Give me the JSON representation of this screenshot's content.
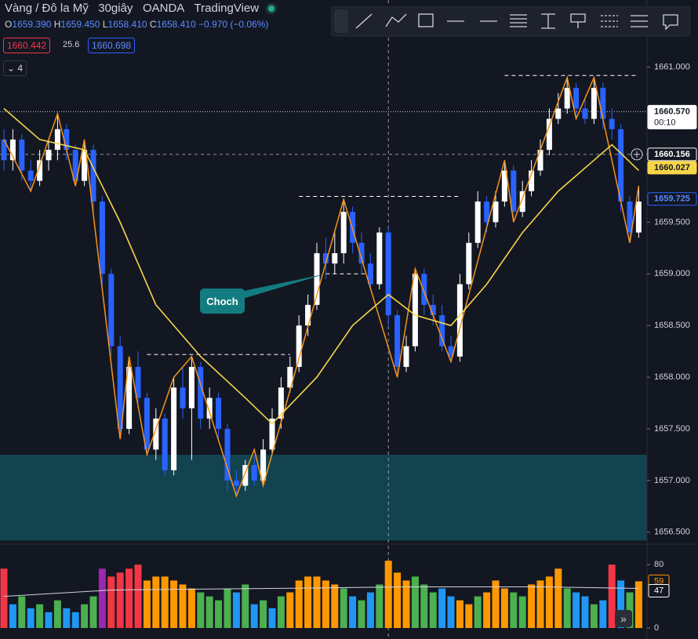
{
  "header": {
    "symbol": "Vàng / Đô la Mỹ",
    "interval": "30giây",
    "broker": "OANDA",
    "platform": "TradingView",
    "ohlc": {
      "o_label": "O",
      "o": "1659.390",
      "h_label": "H",
      "h": "1659.450",
      "l_label": "L",
      "l": "1658.410",
      "c_label": "C",
      "c": "1658.410",
      "change": "−0.970 (−0.06%)"
    },
    "bid": "1660.442",
    "spread": "25.6",
    "ask": "1660.698",
    "indicators": "4"
  },
  "chart_data": {
    "type": "candlestick",
    "ylim": [
      1656.4,
      1661.65
    ],
    "yticks": [
      {
        "value": 1661.0,
        "label": "1661.000"
      },
      {
        "value": 1659.5,
        "label": "1659.500"
      },
      {
        "value": 1659.0,
        "label": "1659.000"
      },
      {
        "value": 1658.5,
        "label": "1658.500"
      },
      {
        "value": 1658.0,
        "label": "1658.000"
      },
      {
        "value": 1657.5,
        "label": "1657.500"
      },
      {
        "value": 1657.0,
        "label": "1657.000"
      },
      {
        "value": 1656.5,
        "label": "1656.500"
      }
    ],
    "up_color": "#ffffff",
    "down_color": "#2962ff",
    "candles": {
      "open": [
        1660.3,
        1660.1,
        1660.3,
        1660.0,
        1659.9,
        1660.1,
        1660.2,
        1660.4,
        1660.2,
        1659.9,
        1660.2,
        1659.7,
        1659.0,
        1658.3,
        1657.5,
        1658.1,
        1657.8,
        1657.3,
        1657.6,
        1657.1,
        1657.9,
        1657.7,
        1658.1,
        1657.6,
        1657.8,
        1657.5,
        1657.0,
        1656.95,
        1657.15,
        1657.0,
        1657.3,
        1657.6,
        1657.9,
        1658.1,
        1658.5,
        1658.7,
        1659.2,
        1659.1,
        1659.2,
        1659.6,
        1659.3,
        1659.1,
        1658.9,
        1659.4,
        1658.6,
        1658.1,
        1658.3,
        1659.0,
        1658.7,
        1658.6,
        1658.3,
        1658.2,
        1658.9,
        1659.3,
        1659.7,
        1659.5,
        1659.7,
        1660.0,
        1659.6,
        1659.8,
        1660.0,
        1660.2,
        1660.5,
        1660.6,
        1660.8,
        1660.6,
        1660.5,
        1660.8,
        1660.5,
        1660.4,
        1659.7,
        1659.4
      ],
      "high": [
        1660.4,
        1660.4,
        1660.35,
        1660.1,
        1660.2,
        1660.3,
        1660.55,
        1660.45,
        1660.25,
        1660.3,
        1660.25,
        1659.75,
        1659.05,
        1658.4,
        1658.2,
        1658.25,
        1657.85,
        1657.7,
        1657.65,
        1658.0,
        1658.1,
        1658.2,
        1658.15,
        1657.9,
        1657.85,
        1657.55,
        1657.1,
        1657.2,
        1657.25,
        1657.4,
        1657.7,
        1658.0,
        1658.2,
        1658.6,
        1658.8,
        1659.3,
        1659.35,
        1659.4,
        1659.72,
        1659.65,
        1659.4,
        1659.2,
        1659.45,
        1659.45,
        1658.65,
        1658.4,
        1659.05,
        1659.05,
        1658.8,
        1658.7,
        1658.4,
        1659.0,
        1659.4,
        1659.8,
        1659.75,
        1659.8,
        1660.1,
        1660.05,
        1659.9,
        1660.1,
        1660.3,
        1660.6,
        1660.75,
        1660.9,
        1660.85,
        1660.7,
        1660.9,
        1660.85,
        1660.6,
        1660.45,
        1659.75,
        1659.85
      ],
      "low": [
        1660.0,
        1660.0,
        1659.9,
        1659.8,
        1659.85,
        1660.0,
        1660.1,
        1660.1,
        1659.85,
        1659.85,
        1659.6,
        1658.9,
        1658.2,
        1657.4,
        1657.45,
        1657.7,
        1657.25,
        1657.2,
        1657.05,
        1657.05,
        1657.6,
        1657.2,
        1657.5,
        1657.5,
        1657.4,
        1656.9,
        1656.85,
        1656.9,
        1656.95,
        1656.95,
        1657.25,
        1657.5,
        1657.85,
        1658.05,
        1658.4,
        1658.65,
        1658.95,
        1659.0,
        1659.1,
        1659.2,
        1659.0,
        1658.85,
        1658.85,
        1658.5,
        1658.0,
        1658.05,
        1658.25,
        1658.6,
        1658.5,
        1658.25,
        1658.15,
        1658.15,
        1658.85,
        1659.25,
        1659.4,
        1659.45,
        1659.65,
        1659.5,
        1659.55,
        1659.75,
        1659.95,
        1660.15,
        1660.45,
        1660.55,
        1660.5,
        1660.45,
        1660.45,
        1660.4,
        1660.3,
        1659.6,
        1659.3,
        1659.35
      ],
      "close": [
        1660.1,
        1660.3,
        1660.0,
        1659.9,
        1660.1,
        1660.2,
        1660.4,
        1660.2,
        1659.9,
        1660.2,
        1659.7,
        1659.0,
        1658.3,
        1657.5,
        1658.1,
        1657.8,
        1657.3,
        1657.6,
        1657.1,
        1657.9,
        1657.7,
        1658.1,
        1657.6,
        1657.8,
        1657.5,
        1657.0,
        1656.95,
        1657.15,
        1657.0,
        1657.3,
        1657.6,
        1657.9,
        1658.1,
        1658.5,
        1658.7,
        1659.2,
        1659.1,
        1659.2,
        1659.6,
        1659.3,
        1659.1,
        1658.9,
        1659.4,
        1658.6,
        1658.1,
        1658.3,
        1659.0,
        1658.7,
        1658.6,
        1658.3,
        1658.2,
        1658.9,
        1659.3,
        1659.7,
        1659.5,
        1659.7,
        1660.0,
        1659.6,
        1659.8,
        1660.0,
        1660.2,
        1660.5,
        1660.6,
        1660.8,
        1660.6,
        1660.5,
        1660.8,
        1660.5,
        1660.4,
        1659.7,
        1659.4,
        1659.7
      ]
    },
    "ma": {
      "color": "#f7d64a",
      "x": [
        0,
        4,
        9,
        13,
        17,
        22,
        27,
        30,
        35,
        39,
        43,
        46,
        50,
        54,
        58,
        62,
        66,
        68,
        71
      ],
      "values": [
        1660.6,
        1660.3,
        1660.2,
        1659.5,
        1658.7,
        1658.2,
        1657.8,
        1657.55,
        1658.0,
        1658.5,
        1658.8,
        1658.6,
        1658.5,
        1658.9,
        1659.4,
        1659.8,
        1660.1,
        1660.25,
        1660.0
      ]
    },
    "zigzag": {
      "color": "#f7931a",
      "x": [
        0,
        3,
        6,
        8,
        9,
        13,
        14,
        16,
        19,
        21,
        26,
        28,
        29,
        38,
        44,
        46,
        50,
        56,
        57,
        63,
        64,
        66,
        70,
        71
      ],
      "values": [
        1660.3,
        1659.8,
        1660.55,
        1659.85,
        1660.3,
        1657.4,
        1658.2,
        1657.25,
        1658.0,
        1658.2,
        1656.85,
        1657.3,
        1656.95,
        1659.72,
        1658.0,
        1659.05,
        1658.15,
        1660.1,
        1659.5,
        1660.9,
        1660.5,
        1660.9,
        1659.3,
        1659.85
      ]
    },
    "levels": [
      {
        "value": 1660.92,
        "from": 56,
        "to": 71
      },
      {
        "value": 1659.75,
        "from": 33,
        "to": 51
      },
      {
        "value": 1659.0,
        "from": 36,
        "to": 41
      },
      {
        "value": 1658.22,
        "from": 16,
        "to": 32
      }
    ],
    "zone": {
      "low": 1656.42,
      "high": 1657.25,
      "color": "#134b57"
    },
    "last_price": 1660.57,
    "crosshair": {
      "x": 43,
      "y": 1660.156
    },
    "price_labels": [
      {
        "value": 1660.57,
        "label": "1660.570",
        "bg": "#ffffff",
        "fg": "#131722",
        "border": "#ffffff"
      },
      {
        "value": 1660.156,
        "label": "1660.156",
        "bg": "#131722",
        "fg": "#ffffff",
        "border": "#ffffff"
      },
      {
        "value": 1660.027,
        "label": "1660.027",
        "bg": "#f7d64a",
        "fg": "#131722",
        "border": "#f7d64a"
      },
      {
        "value": 1659.725,
        "label": "1659.725",
        "bg": "#131722",
        "fg": "#5b8cff",
        "border": "#2962ff"
      }
    ],
    "countdown": "00:10",
    "annotation": {
      "text": "Choch",
      "x": 36,
      "y": 1659.0
    },
    "volume": {
      "ylim": [
        0,
        100
      ],
      "yticks": [
        0,
        80
      ],
      "values": [
        75,
        30,
        40,
        25,
        30,
        20,
        35,
        25,
        20,
        30,
        40,
        75,
        65,
        70,
        75,
        80,
        60,
        65,
        65,
        60,
        55,
        50,
        45,
        40,
        35,
        50,
        45,
        55,
        30,
        35,
        25,
        40,
        45,
        60,
        65,
        65,
        60,
        55,
        50,
        40,
        35,
        45,
        55,
        85,
        70,
        60,
        65,
        55,
        45,
        50,
        40,
        35,
        30,
        40,
        45,
        60,
        50,
        45,
        40,
        55,
        60,
        65,
        75,
        50,
        45,
        40,
        30,
        35,
        80,
        60,
        45,
        59
      ],
      "colors": [
        "#f23645",
        "#2196f3",
        "#4caf50",
        "#2196f3",
        "#4caf50",
        "#2196f3",
        "#4caf50",
        "#2196f3",
        "#2196f3",
        "#4caf50",
        "#4caf50",
        "#9c27b0",
        "#f23645",
        "#f23645",
        "#f23645",
        "#f23645",
        "#ff9800",
        "#ff9800",
        "#ff9800",
        "#ff9800",
        "#ff9800",
        "#ff9800",
        "#4caf50",
        "#4caf50",
        "#4caf50",
        "#4caf50",
        "#2196f3",
        "#4caf50",
        "#2196f3",
        "#4caf50",
        "#2196f3",
        "#4caf50",
        "#ff9800",
        "#ff9800",
        "#ff9800",
        "#ff9800",
        "#ff9800",
        "#ff9800",
        "#4caf50",
        "#2196f3",
        "#4caf50",
        "#2196f3",
        "#4caf50",
        "#ff9800",
        "#ff9800",
        "#ff9800",
        "#4caf50",
        "#4caf50",
        "#4caf50",
        "#2196f3",
        "#2196f3",
        "#ff9800",
        "#ff9800",
        "#4caf50",
        "#ff9800",
        "#ff9800",
        "#ff9800",
        "#4caf50",
        "#4caf50",
        "#ff9800",
        "#ff9800",
        "#ff9800",
        "#ff9800",
        "#4caf50",
        "#2196f3",
        "#2196f3",
        "#4caf50",
        "#2196f3",
        "#f23645",
        "#2196f3",
        "#4caf50",
        "#ff9800"
      ],
      "ma": {
        "color": "#d1d4dc",
        "x": [
          0,
          12,
          30,
          45,
          60,
          71
        ],
        "values": [
          40,
          48,
          50,
          52,
          52,
          50
        ]
      },
      "labels": [
        {
          "value": 59,
          "color": "#ff9800"
        },
        {
          "value": 47,
          "color": "#ffffff"
        }
      ]
    }
  }
}
